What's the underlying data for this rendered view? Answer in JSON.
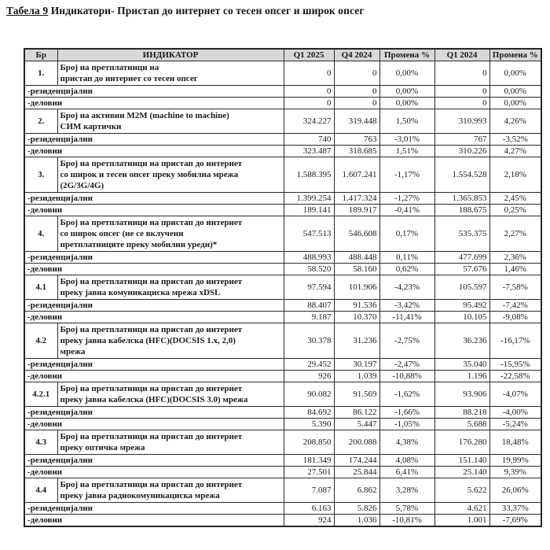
{
  "title": {
    "underlined": "Табела 9",
    "rest": " Индикатори- Пристап до интернет со тесен опсег и широк опсег"
  },
  "table": {
    "headers": [
      "Бр",
      "ИНДИКАТОР",
      "Q1 2025",
      "Q4 2024",
      "Промена %",
      "Q1 2024",
      "Промена %"
    ],
    "rows": [
      {
        "type": "main",
        "num": "1.",
        "label": "Број на претплатници на\nпристап до интернет со тесен опсег",
        "values": [
          "0",
          "0",
          "0,00%",
          "0",
          "0,00%"
        ]
      },
      {
        "type": "sub",
        "label": "-резиденцијални",
        "values": [
          "0",
          "0",
          "0,00%",
          "0",
          "0,00%"
        ]
      },
      {
        "type": "sub",
        "label": "-деловни",
        "values": [
          "0",
          "0",
          "0,00%",
          "0",
          "0,00%"
        ]
      },
      {
        "type": "main",
        "num": "2.",
        "label": "Број на активни М2М (machine to machine)\nСИМ картички",
        "values": [
          "324.227",
          "319.448",
          "1,50%",
          "310.993",
          "4,26%"
        ]
      },
      {
        "type": "sub",
        "label": "-резиденцијални",
        "values": [
          "740",
          "763",
          "-3,01%",
          "767",
          "-3,52%"
        ]
      },
      {
        "type": "sub",
        "label": "-деловни",
        "values": [
          "323.487",
          "318.685",
          "1,51%",
          "310.226",
          "4,27%"
        ]
      },
      {
        "type": "main",
        "num": "3.",
        "label": "Број на претплатници на пристап до интернет\nсо широк и тесен опсег преку мобилна мрежа\n(2G/3G/4G)",
        "values": [
          "1.588.395",
          "1.607.241",
          "-1,17%",
          "1.554.528",
          "2,18%"
        ]
      },
      {
        "type": "sub",
        "label": "-резиденцијални",
        "values": [
          "1.399.254",
          "1.417.324",
          "-1,27%",
          "1.365.853",
          "2,45%"
        ]
      },
      {
        "type": "sub",
        "label": "-деловни",
        "values": [
          "189.141",
          "189.917",
          "-0,41%",
          "188.675",
          "0,25%"
        ]
      },
      {
        "type": "main",
        "num": "4.",
        "label": "Број на претплатници на пристап до интернет\nсо широк опсег (не се вклучени\nпретплатниците преку мобилни уреди)*",
        "values": [
          "547.513",
          "546.608",
          "0,17%",
          "535.375",
          "2,27%"
        ]
      },
      {
        "type": "sub",
        "label": "-резиденцијални",
        "values": [
          "488.993",
          "488.448",
          "0,11%",
          "477.699",
          "2,36%"
        ]
      },
      {
        "type": "sub",
        "label": "-деловни",
        "values": [
          "58.520",
          "58.160",
          "0,62%",
          "57.676",
          "1,46%"
        ]
      },
      {
        "type": "main",
        "num": "4.1",
        "label": "Број на претплатници на пристап до интернет\nпреку јавна комуникациска мрежа xDSL",
        "values": [
          "97.594",
          "101.906",
          "-4,23%",
          "105.597",
          "-7,58%"
        ]
      },
      {
        "type": "sub",
        "label": "-резиденцијални",
        "values": [
          "88.407",
          "91.536",
          "-3,42%",
          "95.492",
          "-7,42%"
        ]
      },
      {
        "type": "sub",
        "label": "-деловни",
        "values": [
          "9.187",
          "10.370",
          "-11,41%",
          "10.105",
          "-9,08%"
        ]
      },
      {
        "type": "main",
        "num": "4.2",
        "label": "Број на претплатници на пристап до интернет\nпреку јавна кабелска (HFC)(DOCSIS 1.x, 2,0)\nмрежа",
        "values": [
          "30.378",
          "31.236",
          "-2,75%",
          "36.236",
          "-16,17%"
        ]
      },
      {
        "type": "sub",
        "label": "-резиденцијални",
        "values": [
          "29.452",
          "30.197",
          "-2,47%",
          "35.040",
          "-15,95%"
        ]
      },
      {
        "type": "sub",
        "label": "-деловни",
        "values": [
          "926",
          "1.039",
          "-10,88%",
          "1.196",
          "-22,58%"
        ]
      },
      {
        "type": "main",
        "num": "4.2.1",
        "label": "Број на претплатници на пристап до интернет\nпреку јавна кабелска (HFC)(DOCSIS 3.0) мрежа",
        "values": [
          "90.082",
          "91.569",
          "-1,62%",
          "93.906",
          "-4,07%"
        ]
      },
      {
        "type": "sub",
        "label": "-резиденцијални",
        "values": [
          "84.692",
          "86.122",
          "-1,66%",
          "88.218",
          "-4,00%"
        ]
      },
      {
        "type": "sub",
        "label": "-деловни",
        "values": [
          "5.390",
          "5.447",
          "-1,05%",
          "5.688",
          "-5,24%"
        ]
      },
      {
        "type": "main",
        "num": "4.3",
        "label": "Број на претплатници на пристап до интернет\nпреку оптичка мрежа",
        "values": [
          "208.850",
          "200.088",
          "4,38%",
          "176.280",
          "18,48%"
        ]
      },
      {
        "type": "sub",
        "label": "-резиденцијални",
        "values": [
          "181.349",
          "174.244",
          "4,08%",
          "151.140",
          "19,99%"
        ]
      },
      {
        "type": "sub",
        "label": "-деловни",
        "values": [
          "27.501",
          "25.844",
          "6,41%",
          "25.140",
          "9,39%"
        ]
      },
      {
        "type": "main",
        "num": "4.4",
        "label": "Број на претплатници на пристап до интернет\nпреку јавна радиокомуникациска мрежа",
        "values": [
          "7.087",
          "6.862",
          "3,28%",
          "5.622",
          "26,06%"
        ]
      },
      {
        "type": "sub",
        "label": "-резиденцијални",
        "values": [
          "6.163",
          "5.826",
          "5,78%",
          "4.621",
          "33,37%"
        ]
      },
      {
        "type": "sub",
        "label": "-деловни",
        "values": [
          "924",
          "1.036",
          "-10,81%",
          "1.001",
          "-7,69%"
        ]
      }
    ],
    "colors": {
      "header_bg": "#d8d8d8",
      "border": "#2b2b2b",
      "text": "#1b1b1b"
    }
  }
}
